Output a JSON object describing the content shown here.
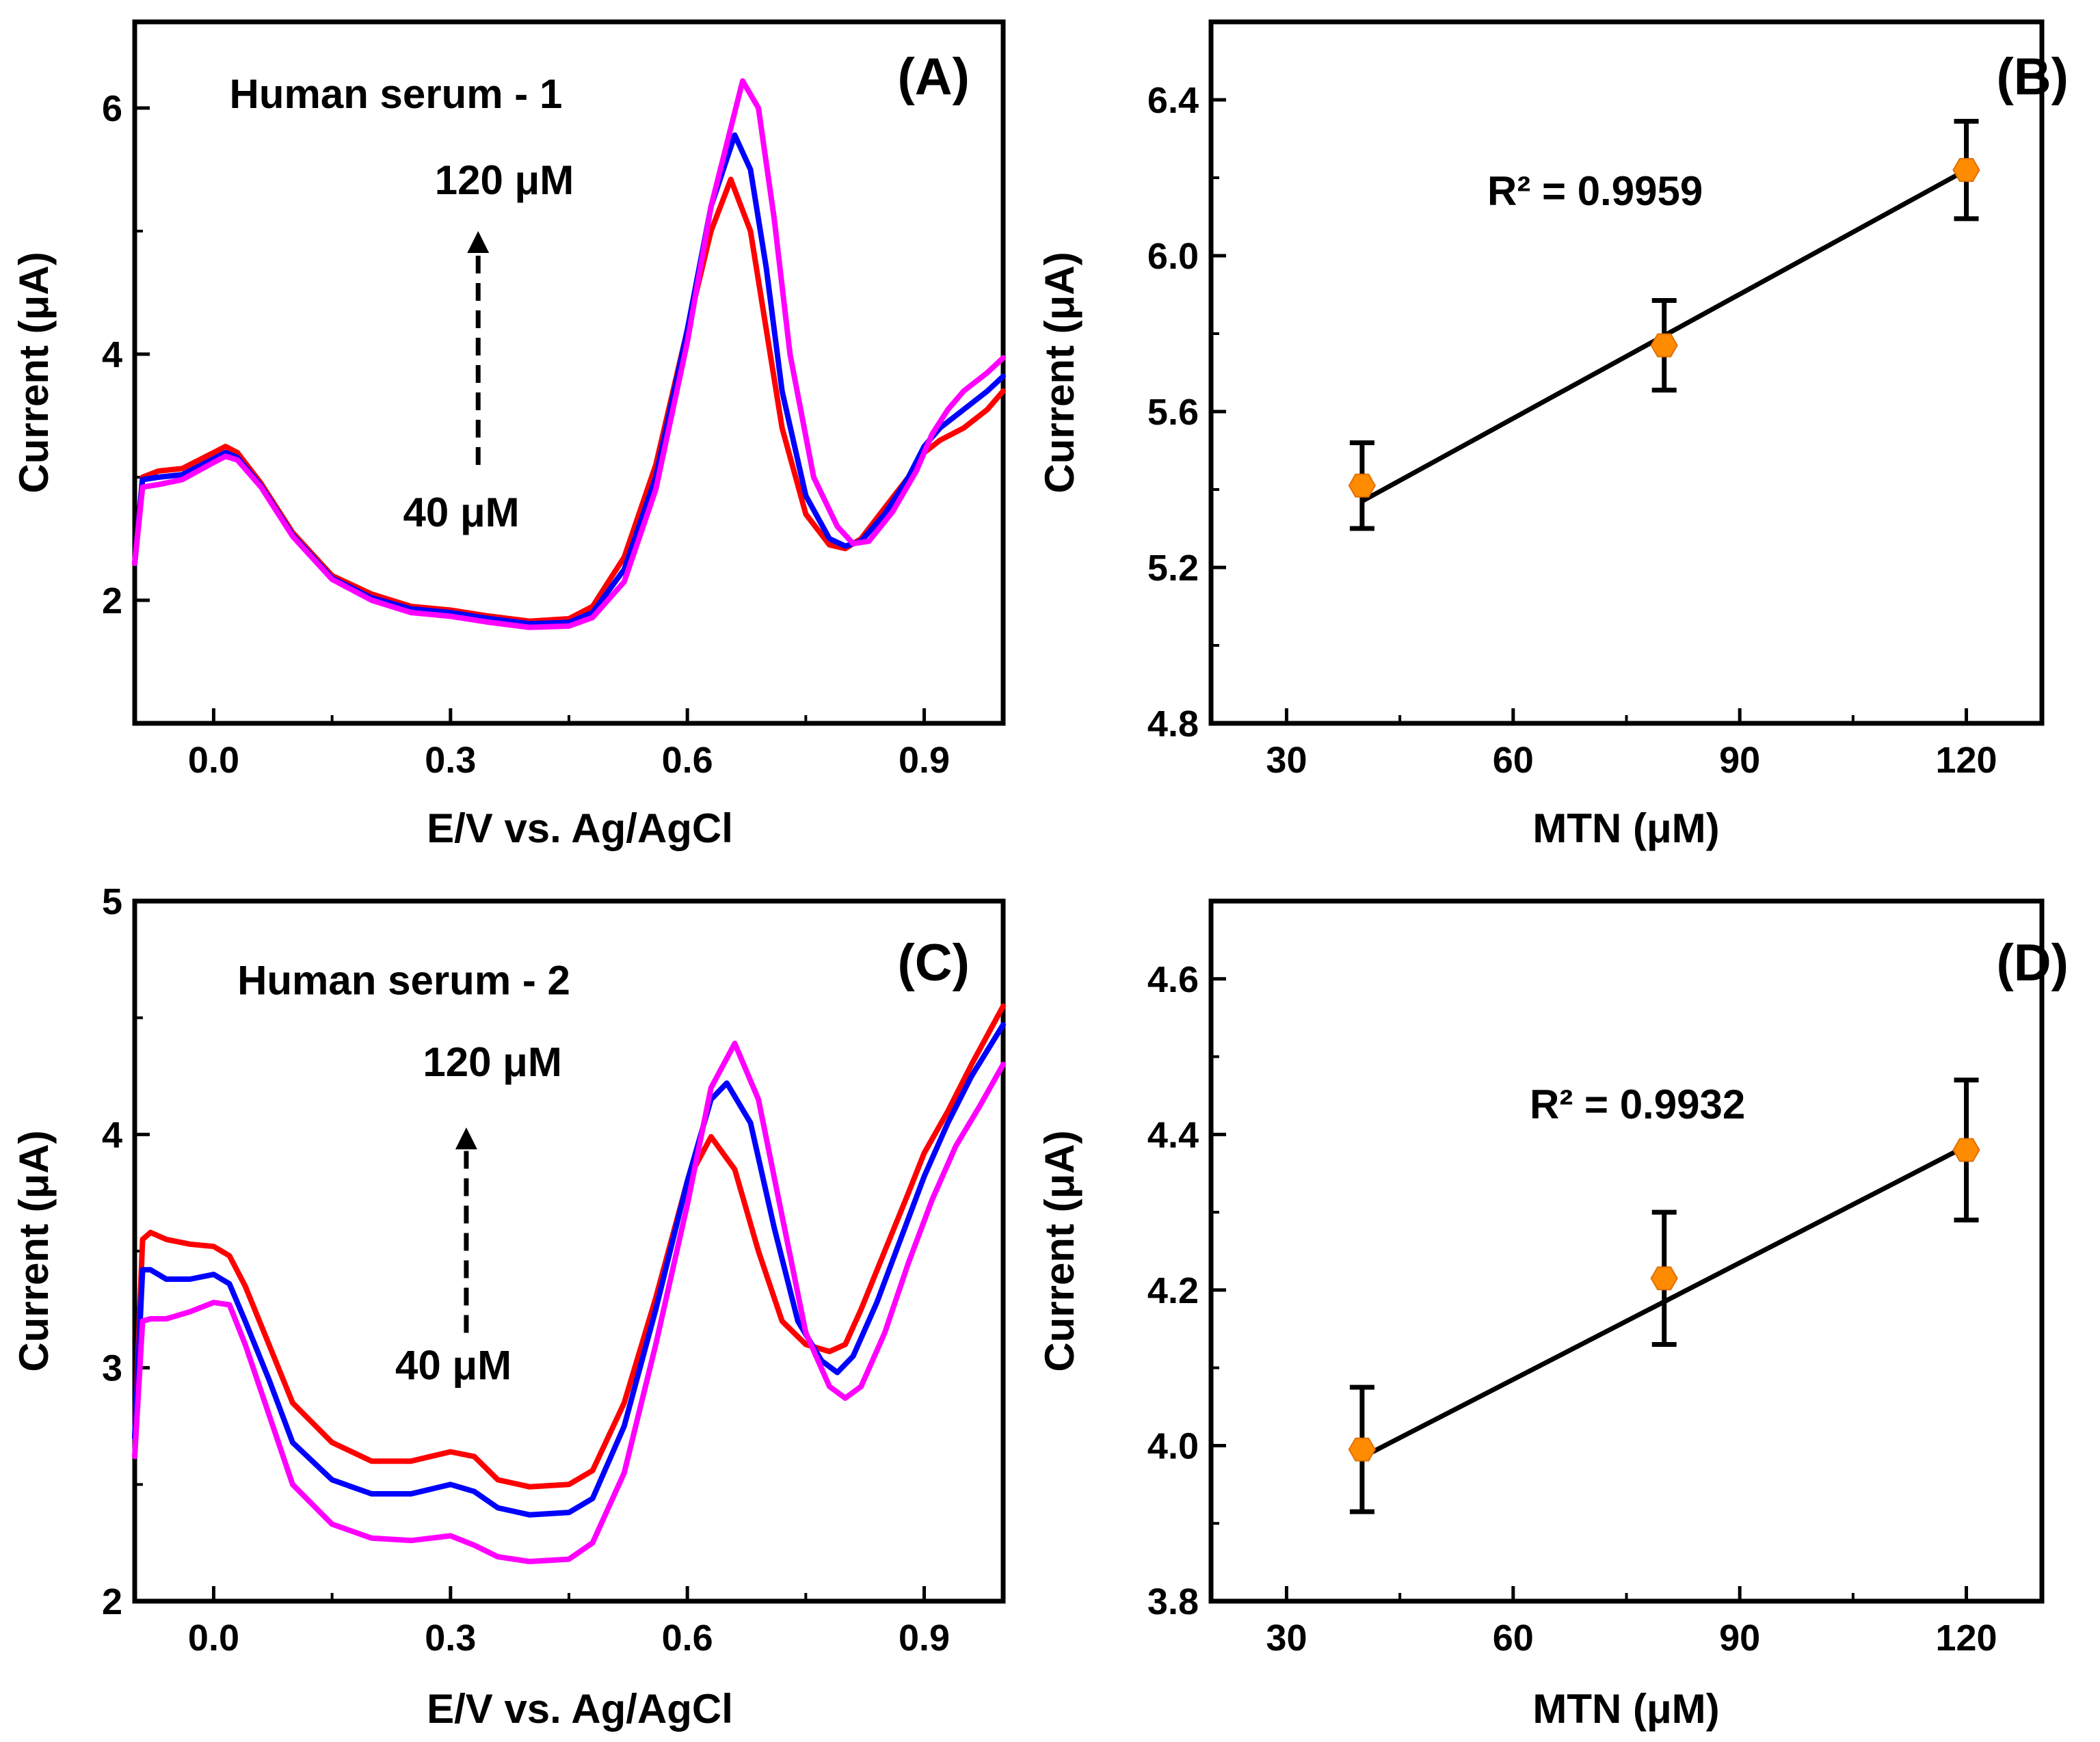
{
  "chart_data": [
    {
      "panel": "(A)",
      "type": "line",
      "title": "",
      "xlabel": "E/V vs. Ag/AgCl",
      "ylabel": "Current (μA)",
      "xlim": [
        -0.1,
        1.0
      ],
      "ylim": [
        1.0,
        6.7
      ],
      "xticks": [
        0.0,
        0.3,
        0.6,
        0.9
      ],
      "xtick_labels": [
        "0.0",
        "0.3",
        "0.6",
        "0.9"
      ],
      "yticks": [
        2,
        4,
        6
      ],
      "ytick_labels": [
        "2",
        "4",
        "6"
      ],
      "annotations": [
        {
          "text": "Human serum - 1",
          "x": 0.02,
          "y": 6.0
        },
        {
          "text": "120 μM",
          "x": 0.28,
          "y": 5.3
        },
        {
          "text": "40 μM",
          "x": 0.24,
          "y": 2.6
        }
      ],
      "arrow": {
        "x": 0.335,
        "from_y": 3.1,
        "to_y": 5.0,
        "style": "dashed"
      },
      "series": [
        {
          "color": "#ff0000",
          "x": [
            -0.1,
            -0.09,
            -0.07,
            -0.04,
            0.0,
            0.015,
            0.03,
            0.06,
            0.1,
            0.15,
            0.2,
            0.25,
            0.3,
            0.35,
            0.4,
            0.45,
            0.48,
            0.52,
            0.56,
            0.6,
            0.63,
            0.655,
            0.68,
            0.7,
            0.72,
            0.75,
            0.78,
            0.8,
            0.82,
            0.85,
            0.88,
            0.9,
            0.92,
            0.95,
            0.98,
            1.0
          ],
          "y": [
            2.3,
            3.0,
            3.05,
            3.07,
            3.2,
            3.25,
            3.2,
            2.95,
            2.55,
            2.2,
            2.05,
            1.95,
            1.92,
            1.87,
            1.83,
            1.85,
            1.95,
            2.35,
            3.1,
            4.2,
            5.0,
            5.42,
            5.0,
            4.2,
            3.4,
            2.7,
            2.45,
            2.42,
            2.5,
            2.75,
            3.0,
            3.2,
            3.3,
            3.4,
            3.55,
            3.7
          ]
        },
        {
          "color": "#0000ff",
          "x": [
            -0.1,
            -0.09,
            -0.07,
            -0.04,
            0.0,
            0.015,
            0.03,
            0.06,
            0.1,
            0.15,
            0.2,
            0.25,
            0.3,
            0.35,
            0.4,
            0.45,
            0.48,
            0.52,
            0.56,
            0.6,
            0.63,
            0.66,
            0.68,
            0.7,
            0.72,
            0.75,
            0.78,
            0.8,
            0.82,
            0.85,
            0.88,
            0.9,
            0.92,
            0.95,
            0.98,
            1.0
          ],
          "y": [
            2.3,
            2.98,
            3.0,
            3.02,
            3.15,
            3.2,
            3.16,
            2.93,
            2.53,
            2.18,
            2.02,
            1.93,
            1.9,
            1.85,
            1.81,
            1.82,
            1.9,
            2.25,
            3.0,
            4.2,
            5.2,
            5.78,
            5.5,
            4.7,
            3.7,
            2.85,
            2.5,
            2.44,
            2.48,
            2.7,
            3.0,
            3.25,
            3.4,
            3.55,
            3.7,
            3.82
          ]
        },
        {
          "color": "#ff00ff",
          "x": [
            -0.1,
            -0.09,
            -0.07,
            -0.04,
            0.0,
            0.015,
            0.03,
            0.06,
            0.1,
            0.15,
            0.2,
            0.25,
            0.3,
            0.35,
            0.4,
            0.45,
            0.48,
            0.52,
            0.56,
            0.6,
            0.63,
            0.67,
            0.69,
            0.71,
            0.73,
            0.76,
            0.79,
            0.81,
            0.83,
            0.86,
            0.89,
            0.91,
            0.93,
            0.95,
            0.98,
            1.0
          ],
          "y": [
            2.3,
            2.92,
            2.94,
            2.98,
            3.12,
            3.17,
            3.14,
            2.92,
            2.52,
            2.17,
            2.0,
            1.9,
            1.87,
            1.82,
            1.78,
            1.79,
            1.86,
            2.15,
            2.9,
            4.1,
            5.2,
            6.22,
            6.0,
            5.1,
            4.0,
            3.0,
            2.6,
            2.46,
            2.48,
            2.72,
            3.05,
            3.35,
            3.55,
            3.7,
            3.85,
            3.97
          ]
        }
      ]
    },
    {
      "panel": "(B)",
      "type": "scatter",
      "title": "",
      "xlabel": "MTN (μM)",
      "ylabel": "Current (μA)",
      "xlim": [
        20,
        130
      ],
      "ylim": [
        4.8,
        6.6
      ],
      "xticks": [
        30,
        60,
        90,
        120
      ],
      "xtick_labels": [
        "30",
        "60",
        "90",
        "120"
      ],
      "yticks": [
        4.8,
        5.2,
        5.6,
        6.0,
        6.4
      ],
      "ytick_labels": [
        "4.8",
        "5.2",
        "5.6",
        "6.0",
        "6.4"
      ],
      "annotation": "R² = 0.9959",
      "annotation_pos": {
        "x": 65,
        "y": 6.18
      },
      "x": [
        40,
        80,
        120
      ],
      "y": [
        5.41,
        5.77,
        6.22
      ],
      "error": [
        0.11,
        0.115,
        0.125
      ],
      "fit": {
        "x": [
          40,
          120
        ],
        "y": [
          5.37,
          6.22
        ]
      },
      "marker_color": "#ff8c00"
    },
    {
      "panel": "(C)",
      "type": "line",
      "title": "",
      "xlabel": "E/V vs. Ag/AgCl",
      "ylabel": "Current (μA)",
      "xlim": [
        -0.1,
        1.0
      ],
      "ylim": [
        2.0,
        5.0
      ],
      "xticks": [
        0.0,
        0.3,
        0.6,
        0.9
      ],
      "xtick_labels": [
        "0.0",
        "0.3",
        "0.6",
        "0.9"
      ],
      "yticks": [
        2,
        3,
        4,
        5
      ],
      "ytick_labels": [
        "2",
        "3",
        "4",
        "5"
      ],
      "annotations": [
        {
          "text": "Human serum - 2",
          "x": 0.03,
          "y": 4.6
        },
        {
          "text": "120 μM",
          "x": 0.265,
          "y": 4.25
        },
        {
          "text": "40 μM",
          "x": 0.23,
          "y": 2.95
        }
      ],
      "arrow": {
        "x": 0.32,
        "from_y": 3.15,
        "to_y": 4.03,
        "style": "dashed"
      },
      "series": [
        {
          "color": "#ff0000",
          "x": [
            -0.1,
            -0.09,
            -0.08,
            -0.06,
            -0.03,
            0.0,
            0.02,
            0.04,
            0.07,
            0.1,
            0.15,
            0.2,
            0.25,
            0.3,
            0.33,
            0.36,
            0.4,
            0.45,
            0.48,
            0.52,
            0.56,
            0.6,
            0.63,
            0.66,
            0.69,
            0.72,
            0.75,
            0.78,
            0.8,
            0.82,
            0.85,
            0.88,
            0.9,
            0.93,
            0.96,
            1.0
          ],
          "y": [
            2.7,
            3.55,
            3.58,
            3.55,
            3.53,
            3.52,
            3.48,
            3.35,
            3.1,
            2.85,
            2.68,
            2.6,
            2.6,
            2.64,
            2.62,
            2.52,
            2.49,
            2.5,
            2.56,
            2.85,
            3.3,
            3.8,
            3.99,
            3.85,
            3.5,
            3.2,
            3.1,
            3.07,
            3.1,
            3.25,
            3.5,
            3.75,
            3.92,
            4.1,
            4.3,
            4.55
          ]
        },
        {
          "color": "#0000ff",
          "x": [
            -0.1,
            -0.09,
            -0.08,
            -0.06,
            -0.03,
            0.0,
            0.02,
            0.04,
            0.07,
            0.1,
            0.15,
            0.2,
            0.25,
            0.3,
            0.33,
            0.36,
            0.4,
            0.45,
            0.48,
            0.52,
            0.56,
            0.6,
            0.63,
            0.65,
            0.68,
            0.71,
            0.74,
            0.77,
            0.79,
            0.81,
            0.84,
            0.87,
            0.9,
            0.93,
            0.96,
            1.0
          ],
          "y": [
            2.7,
            3.42,
            3.42,
            3.38,
            3.38,
            3.4,
            3.36,
            3.2,
            2.95,
            2.68,
            2.52,
            2.46,
            2.46,
            2.5,
            2.47,
            2.4,
            2.37,
            2.38,
            2.44,
            2.75,
            3.25,
            3.8,
            4.15,
            4.22,
            4.05,
            3.6,
            3.2,
            3.03,
            2.98,
            3.05,
            3.28,
            3.55,
            3.82,
            4.05,
            4.25,
            4.47
          ]
        },
        {
          "color": "#ff00ff",
          "x": [
            -0.1,
            -0.09,
            -0.08,
            -0.06,
            -0.03,
            0.0,
            0.02,
            0.04,
            0.07,
            0.1,
            0.15,
            0.2,
            0.25,
            0.3,
            0.33,
            0.36,
            0.4,
            0.45,
            0.48,
            0.52,
            0.56,
            0.6,
            0.63,
            0.66,
            0.69,
            0.72,
            0.75,
            0.78,
            0.8,
            0.82,
            0.85,
            0.88,
            0.91,
            0.94,
            0.97,
            1.0
          ],
          "y": [
            2.62,
            3.2,
            3.21,
            3.21,
            3.24,
            3.28,
            3.27,
            3.1,
            2.8,
            2.5,
            2.33,
            2.27,
            2.26,
            2.28,
            2.24,
            2.19,
            2.17,
            2.18,
            2.25,
            2.55,
            3.1,
            3.7,
            4.2,
            4.39,
            4.15,
            3.65,
            3.15,
            2.92,
            2.87,
            2.92,
            3.15,
            3.45,
            3.72,
            3.95,
            4.12,
            4.3
          ]
        }
      ]
    },
    {
      "panel": "(D)",
      "type": "scatter",
      "title": "",
      "xlabel": "MTN (μM)",
      "ylabel": "Current (μA)",
      "xlim": [
        20,
        130
      ],
      "ylim": [
        3.8,
        4.7
      ],
      "xticks": [
        30,
        60,
        90,
        120
      ],
      "xtick_labels": [
        "30",
        "60",
        "90",
        "120"
      ],
      "yticks": [
        3.8,
        4.0,
        4.2,
        4.4,
        4.6
      ],
      "ytick_labels": [
        "3.8",
        "4.0",
        "4.2",
        "4.4",
        "4.6"
      ],
      "annotation": "R² = 0.9932",
      "annotation_pos": {
        "x": 70,
        "y": 4.43
      },
      "x": [
        40,
        80,
        120
      ],
      "y": [
        3.995,
        4.215,
        4.38
      ],
      "error": [
        0.08,
        0.085,
        0.09
      ],
      "fit": {
        "x": [
          40,
          120
        ],
        "y": [
          3.985,
          4.385
        ]
      },
      "marker_color": "#ff8c00"
    }
  ]
}
